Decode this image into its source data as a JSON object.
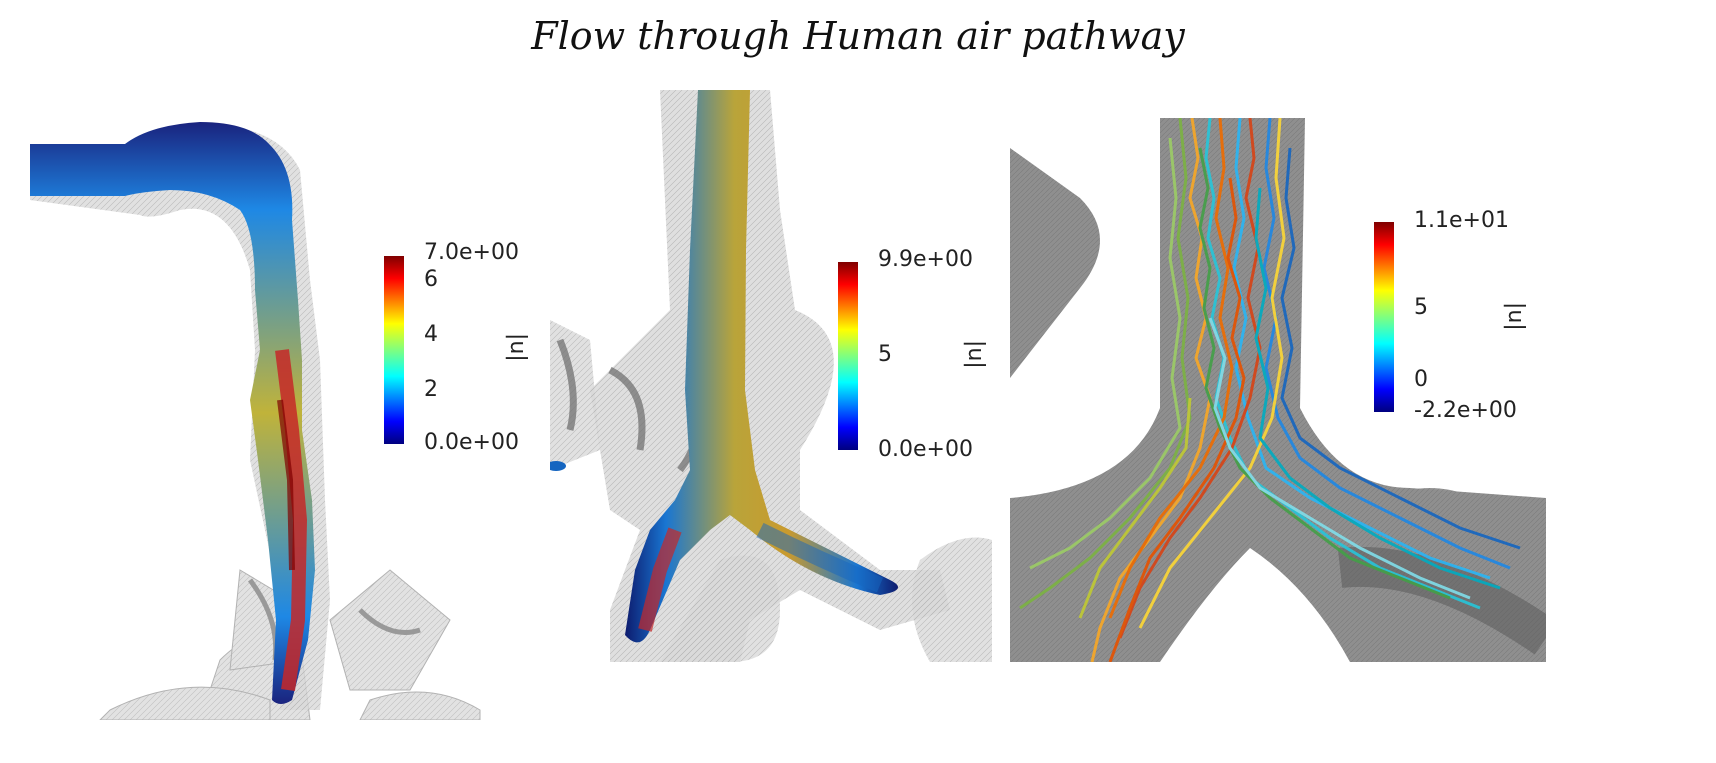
{
  "title": "Flow through Human air pathway",
  "panels": [
    {
      "name": "left",
      "colorbar": {
        "label": "|u|",
        "ticks": [
          "7.0e+00",
          "6",
          "4",
          "2",
          "0.0e+00"
        ]
      }
    },
    {
      "name": "middle",
      "colorbar": {
        "label": "|u|",
        "ticks": [
          "9.9e+00",
          "5",
          "0.0e+00"
        ]
      }
    },
    {
      "name": "right",
      "colorbar": {
        "label": "|u|",
        "ticks": [
          "1.1e+01",
          "5",
          "0",
          "-2.2e+00"
        ]
      }
    }
  ],
  "colors": {
    "jet_low": "#00007f",
    "jet_mid": "#7fff7f",
    "jet_high": "#7f0000",
    "mesh_grey": "#9a9a9a"
  }
}
